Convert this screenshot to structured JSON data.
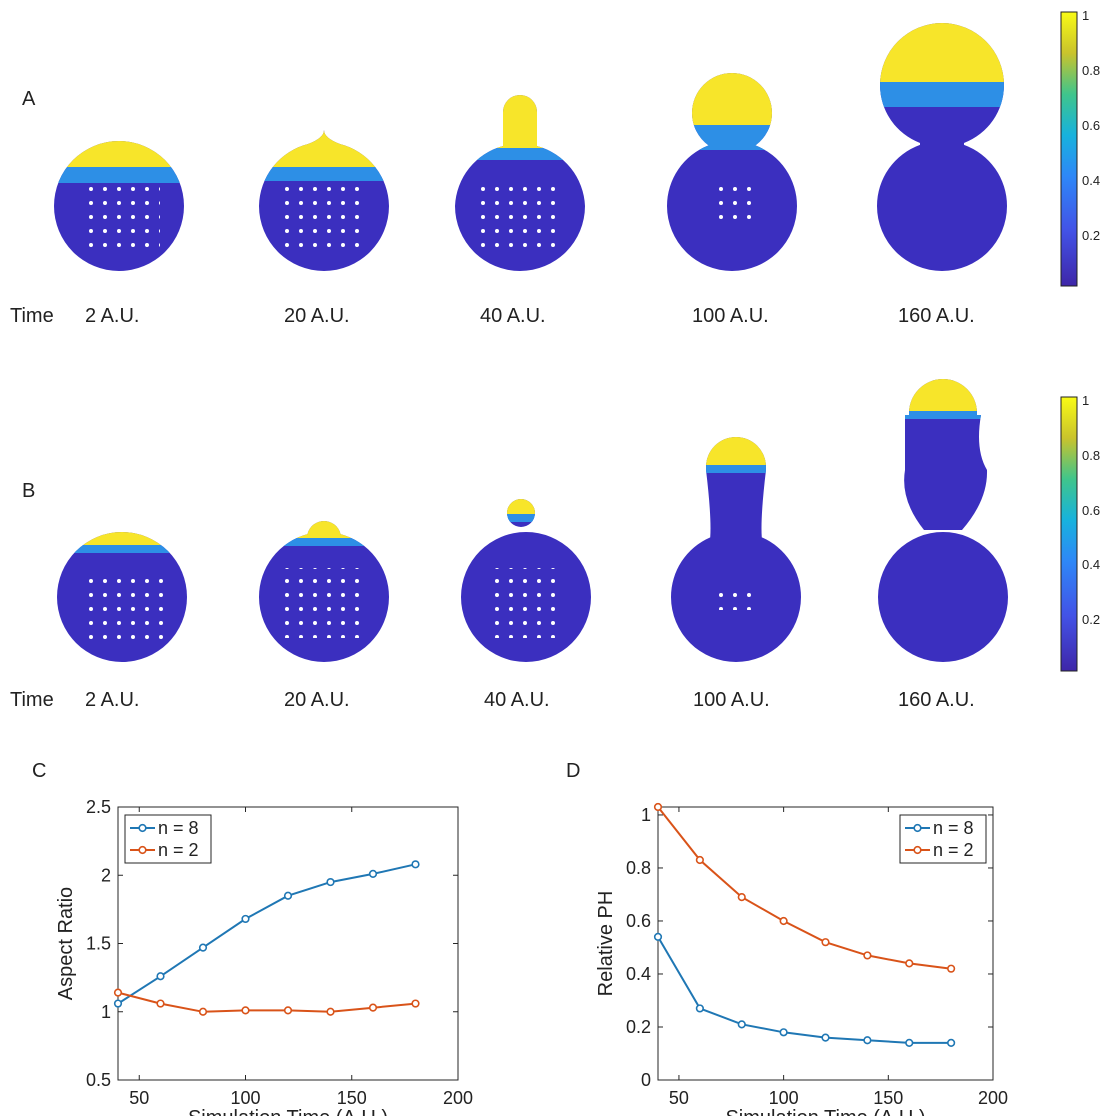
{
  "panels": {
    "A": {
      "letter": "A",
      "time_label": "Time",
      "time_values": [
        "2 A.U.",
        "20 A.U.",
        "40 A.U.",
        "100 A.U.",
        "160 A.U."
      ],
      "colorbar_ticks": [
        "1",
        "0.8",
        "0.6",
        "0.4",
        "0.2"
      ]
    },
    "B": {
      "letter": "B",
      "time_label": "Time",
      "time_values": [
        "2 A.U.",
        "20 A.U.",
        "40 A.U.",
        "100 A.U.",
        "160 A.U."
      ],
      "colorbar_ticks": [
        "1",
        "0.8",
        "0.6",
        "0.4",
        "0.2"
      ]
    },
    "C": {
      "letter": "C"
    },
    "D": {
      "letter": "D"
    }
  },
  "colors": {
    "cell_body": "#3b2fbf",
    "cell_tip": "#f7e52a",
    "cell_mid": "#2d8fe6",
    "n8": "#1f77b4",
    "n2": "#d95319"
  },
  "chart_data": [
    {
      "type": "line",
      "panel": "C",
      "xlabel": "Simulation Time (A.U.)",
      "ylabel": "Aspect Ratio",
      "xlim": [
        40,
        200
      ],
      "ylim": [
        0.5,
        2.5
      ],
      "xticks": [
        50,
        100,
        150,
        200
      ],
      "yticks": [
        0.5,
        1,
        1.5,
        2,
        2.5
      ],
      "legend": "top-left",
      "x": [
        40,
        60,
        80,
        100,
        120,
        140,
        160,
        180
      ],
      "series": [
        {
          "name": "n = 8",
          "values": [
            1.06,
            1.26,
            1.47,
            1.68,
            1.85,
            1.95,
            2.01,
            2.08
          ]
        },
        {
          "name": "n = 2",
          "values": [
            1.14,
            1.06,
            1.0,
            1.01,
            1.01,
            1.0,
            1.03,
            1.06
          ]
        }
      ]
    },
    {
      "type": "line",
      "panel": "D",
      "xlabel": "Simulation Time (A.U.)",
      "ylabel": "Relative PH",
      "xlim": [
        40,
        200
      ],
      "ylim": [
        0,
        1.03
      ],
      "xticks": [
        50,
        100,
        150,
        200
      ],
      "yticks": [
        0,
        0.2,
        0.4,
        0.6,
        0.8,
        1
      ],
      "legend": "top-right",
      "x": [
        40,
        60,
        80,
        100,
        120,
        140,
        160,
        180
      ],
      "series": [
        {
          "name": "n = 8",
          "values": [
            0.54,
            0.27,
            0.21,
            0.18,
            0.16,
            0.15,
            0.14,
            0.14
          ]
        },
        {
          "name": "n = 2",
          "values": [
            1.03,
            0.83,
            0.69,
            0.6,
            0.52,
            0.47,
            0.44,
            0.42
          ]
        }
      ]
    }
  ]
}
